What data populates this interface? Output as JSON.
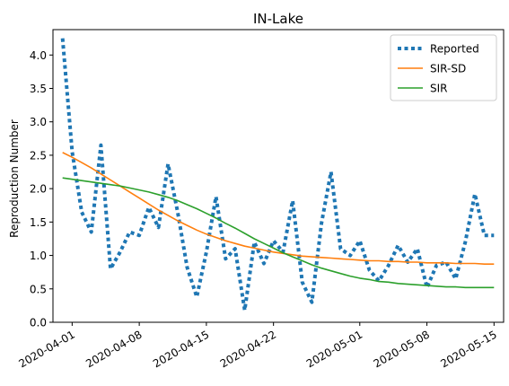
{
  "chart_data": {
    "type": "line",
    "title": "IN-Lake",
    "xlabel": "",
    "ylabel": "Reproduction Number",
    "x_ticks": [
      "2020-04-01",
      "2020-04-08",
      "2020-04-15",
      "2020-04-22",
      "2020-05-01",
      "2020-05-08",
      "2020-05-15"
    ],
    "y_ticks": [
      "0.0",
      "0.5",
      "1.0",
      "1.5",
      "2.0",
      "2.5",
      "3.0",
      "3.5",
      "4.0"
    ],
    "xlim": [
      "2020-03-30",
      "2020-05-16"
    ],
    "ylim": [
      0,
      4.38
    ],
    "grid": false,
    "legend_position": "top-right",
    "series": [
      {
        "name": "Reported",
        "color": "#1f77b4",
        "style": "dotted",
        "x": [
          "2020-03-31",
          "2020-04-01",
          "2020-04-02",
          "2020-04-03",
          "2020-04-04",
          "2020-04-05",
          "2020-04-06",
          "2020-04-07",
          "2020-04-08",
          "2020-04-09",
          "2020-04-10",
          "2020-04-11",
          "2020-04-12",
          "2020-04-13",
          "2020-04-14",
          "2020-04-15",
          "2020-04-16",
          "2020-04-17",
          "2020-04-18",
          "2020-04-19",
          "2020-04-20",
          "2020-04-21",
          "2020-04-22",
          "2020-04-23",
          "2020-04-24",
          "2020-04-25",
          "2020-04-26",
          "2020-04-27",
          "2020-04-28",
          "2020-04-29",
          "2020-04-30",
          "2020-05-01",
          "2020-05-02",
          "2020-05-03",
          "2020-05-04",
          "2020-05-05",
          "2020-05-06",
          "2020-05-07",
          "2020-05-08",
          "2020-05-09",
          "2020-05-10",
          "2020-05-11",
          "2020-05-12",
          "2020-05-13",
          "2020-05-14",
          "2020-05-15"
        ],
        "y": [
          4.25,
          2.55,
          1.65,
          1.35,
          2.65,
          0.8,
          1.05,
          1.35,
          1.3,
          1.72,
          1.42,
          2.37,
          1.65,
          0.82,
          0.38,
          1.05,
          1.88,
          0.95,
          1.1,
          0.18,
          1.2,
          0.88,
          1.22,
          1.05,
          1.82,
          0.6,
          0.3,
          1.48,
          2.25,
          1.1,
          1.0,
          1.22,
          0.78,
          0.62,
          0.85,
          1.15,
          0.9,
          1.1,
          0.52,
          0.85,
          0.9,
          0.65,
          1.2,
          1.92,
          1.3,
          1.3
        ]
      },
      {
        "name": "SIR-SD",
        "color": "#ff7f0e",
        "style": "solid",
        "x": [
          "2020-03-31",
          "2020-04-01",
          "2020-04-02",
          "2020-04-03",
          "2020-04-04",
          "2020-04-05",
          "2020-04-06",
          "2020-04-07",
          "2020-04-08",
          "2020-04-09",
          "2020-04-10",
          "2020-04-11",
          "2020-04-12",
          "2020-04-13",
          "2020-04-14",
          "2020-04-15",
          "2020-04-16",
          "2020-04-17",
          "2020-04-18",
          "2020-04-19",
          "2020-04-20",
          "2020-04-21",
          "2020-04-22",
          "2020-04-23",
          "2020-04-24",
          "2020-04-25",
          "2020-04-26",
          "2020-04-27",
          "2020-04-28",
          "2020-04-29",
          "2020-04-30",
          "2020-05-01",
          "2020-05-02",
          "2020-05-03",
          "2020-05-04",
          "2020-05-05",
          "2020-05-06",
          "2020-05-07",
          "2020-05-08",
          "2020-05-09",
          "2020-05-10",
          "2020-05-11",
          "2020-05-12",
          "2020-05-13",
          "2020-05-14",
          "2020-05-15"
        ],
        "y": [
          2.54,
          2.47,
          2.39,
          2.31,
          2.22,
          2.13,
          2.04,
          1.95,
          1.86,
          1.77,
          1.68,
          1.6,
          1.52,
          1.45,
          1.38,
          1.32,
          1.27,
          1.22,
          1.18,
          1.14,
          1.11,
          1.08,
          1.05,
          1.03,
          1.01,
          0.99,
          0.98,
          0.97,
          0.96,
          0.95,
          0.94,
          0.93,
          0.92,
          0.92,
          0.91,
          0.91,
          0.9,
          0.9,
          0.89,
          0.89,
          0.89,
          0.88,
          0.88,
          0.88,
          0.87,
          0.87
        ]
      },
      {
        "name": "SIR",
        "color": "#2ca02c",
        "style": "solid",
        "x": [
          "2020-03-31",
          "2020-04-01",
          "2020-04-02",
          "2020-04-03",
          "2020-04-04",
          "2020-04-05",
          "2020-04-06",
          "2020-04-07",
          "2020-04-08",
          "2020-04-09",
          "2020-04-10",
          "2020-04-11",
          "2020-04-12",
          "2020-04-13",
          "2020-04-14",
          "2020-04-15",
          "2020-04-16",
          "2020-04-17",
          "2020-04-18",
          "2020-04-19",
          "2020-04-20",
          "2020-04-21",
          "2020-04-22",
          "2020-04-23",
          "2020-04-24",
          "2020-04-25",
          "2020-04-26",
          "2020-04-27",
          "2020-04-28",
          "2020-04-29",
          "2020-04-30",
          "2020-05-01",
          "2020-05-02",
          "2020-05-03",
          "2020-05-04",
          "2020-05-05",
          "2020-05-06",
          "2020-05-07",
          "2020-05-08",
          "2020-05-09",
          "2020-05-10",
          "2020-05-11",
          "2020-05-12",
          "2020-05-13",
          "2020-05-14",
          "2020-05-15"
        ],
        "y": [
          2.16,
          2.14,
          2.12,
          2.1,
          2.08,
          2.06,
          2.04,
          2.01,
          1.98,
          1.95,
          1.91,
          1.87,
          1.82,
          1.76,
          1.7,
          1.63,
          1.56,
          1.48,
          1.41,
          1.33,
          1.25,
          1.18,
          1.11,
          1.04,
          0.98,
          0.92,
          0.86,
          0.81,
          0.77,
          0.73,
          0.69,
          0.66,
          0.64,
          0.61,
          0.6,
          0.58,
          0.57,
          0.56,
          0.55,
          0.54,
          0.53,
          0.53,
          0.52,
          0.52,
          0.52,
          0.52
        ]
      }
    ]
  }
}
